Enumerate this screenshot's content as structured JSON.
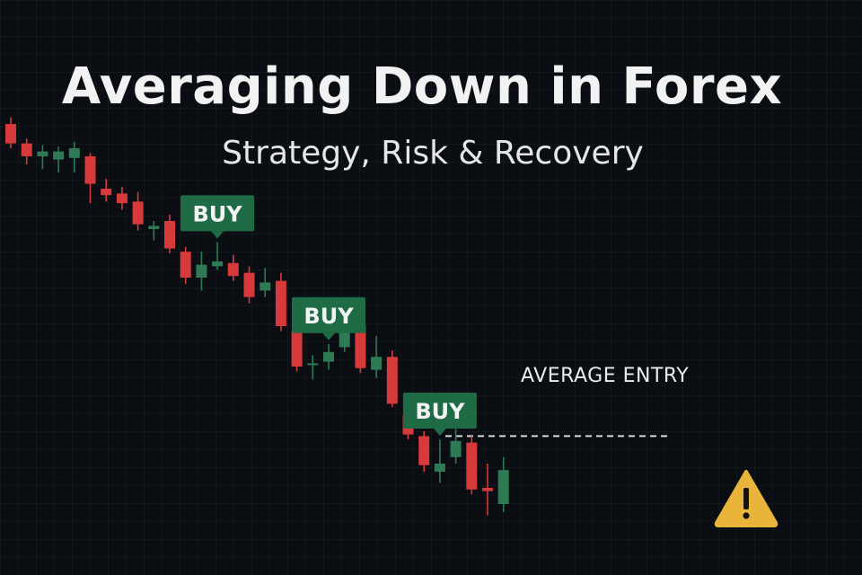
{
  "header": {
    "title": "Averaging Down in Forex",
    "subtitle": "Strategy, Risk & Recovery"
  },
  "annotations": {
    "average_entry_label": "AVERAGE ENTRY",
    "warning_icon": "warning-triangle-icon"
  },
  "colors": {
    "background": "#0a0d12",
    "bullish": "#2e7a55",
    "bearish": "#d63a3a",
    "buy_label_bg": "#1f6b45",
    "warning": "#e8b53a"
  },
  "chart_data": {
    "type": "candlestick",
    "title": "Averaging Down in Forex",
    "subtitle": "Strategy, Risk & Recovery",
    "candles": [
      {
        "o": 40,
        "c": 28,
        "h": 44,
        "l": 25
      },
      {
        "o": 28,
        "c": 20,
        "h": 31,
        "l": 15
      },
      {
        "o": 20,
        "c": 23,
        "h": 27,
        "l": 12
      },
      {
        "o": 18,
        "c": 23,
        "h": 26,
        "l": 10
      },
      {
        "o": 19,
        "c": 25,
        "h": 29,
        "l": 10
      },
      {
        "o": 20,
        "c": 3,
        "h": 22,
        "l": -9
      },
      {
        "o": 0,
        "c": -4,
        "h": 6,
        "l": -8
      },
      {
        "o": -3,
        "c": -9,
        "h": 1,
        "l": -13
      },
      {
        "o": -8,
        "c": -22,
        "h": -2,
        "l": -26
      },
      {
        "o": -25,
        "c": -23,
        "h": -20,
        "l": -32
      },
      {
        "o": -20,
        "c": -37,
        "h": -16,
        "l": -40
      },
      {
        "o": -39,
        "c": -55,
        "h": -36,
        "l": -59
      },
      {
        "o": -55,
        "c": -47,
        "h": -39,
        "l": -63
      },
      {
        "o": -48,
        "c": -45,
        "h": -33,
        "l": -50
      },
      {
        "o": -46,
        "c": -54,
        "h": -41,
        "l": -57
      },
      {
        "o": -52,
        "c": -67,
        "h": -48,
        "l": -71
      },
      {
        "o": -63,
        "c": -58,
        "h": -49,
        "l": -67
      },
      {
        "o": -57,
        "c": -85,
        "h": -52,
        "l": -88
      },
      {
        "o": -88,
        "c": -110,
        "h": -86,
        "l": -113
      },
      {
        "o": -109,
        "c": -108,
        "h": -103,
        "l": -118
      },
      {
        "o": -107,
        "c": -101,
        "h": -96,
        "l": -112
      },
      {
        "o": -98,
        "c": -84,
        "h": -79,
        "l": -101
      },
      {
        "o": -84,
        "c": -111,
        "h": -80,
        "l": -114
      },
      {
        "o": -112,
        "c": -104,
        "h": -91,
        "l": -117
      },
      {
        "o": -104,
        "c": -133,
        "h": -100,
        "l": -135
      },
      {
        "o": -140,
        "c": -152,
        "h": -137,
        "l": -155
      },
      {
        "o": -153,
        "c": -171,
        "h": -150,
        "l": -175
      },
      {
        "o": -175,
        "c": -170,
        "h": -155,
        "l": -182
      },
      {
        "o": -166,
        "c": -156,
        "h": -148,
        "l": -170
      },
      {
        "o": -157,
        "c": -186,
        "h": -153,
        "l": -189
      },
      {
        "o": -185,
        "c": -187,
        "h": -170,
        "l": -202
      },
      {
        "o": -195,
        "c": -174,
        "h": -166,
        "l": -200
      }
    ],
    "buy_markers": [
      {
        "label": "BUY",
        "candle_index": 13
      },
      {
        "label": "BUY",
        "candle_index": 20
      },
      {
        "label": "BUY",
        "candle_index": 27
      }
    ],
    "average_entry": {
      "label": "AVERAGE ENTRY",
      "y": -153
    }
  }
}
